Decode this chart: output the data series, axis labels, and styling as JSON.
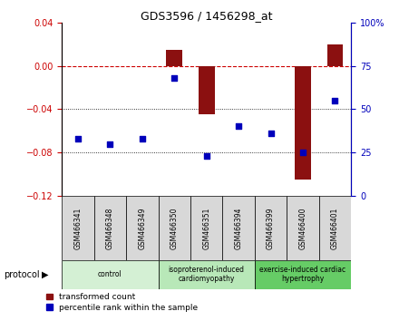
{
  "title": "GDS3596 / 1456298_at",
  "samples": [
    "GSM466341",
    "GSM466348",
    "GSM466349",
    "GSM466350",
    "GSM466351",
    "GSM466394",
    "GSM466399",
    "GSM466400",
    "GSM466401"
  ],
  "transformed_count": [
    0.0,
    0.0,
    0.0,
    0.015,
    -0.045,
    0.0,
    0.0,
    -0.105,
    0.02
  ],
  "percentile_rank": [
    33,
    30,
    33,
    68,
    23,
    40,
    36,
    25,
    55
  ],
  "groups": [
    {
      "label": "control",
      "start": 0,
      "end": 3,
      "color": "#d4f0d4"
    },
    {
      "label": "isoproterenol-induced\ncardiomyopathy",
      "start": 3,
      "end": 6,
      "color": "#b8e8b8"
    },
    {
      "label": "exercise-induced cardiac\nhypertrophy",
      "start": 6,
      "end": 9,
      "color": "#66cc66"
    }
  ],
  "ylim_left": [
    -0.12,
    0.04
  ],
  "ylim_right": [
    0,
    100
  ],
  "yticks_left": [
    0.04,
    0.0,
    -0.04,
    -0.08,
    -0.12
  ],
  "yticks_right": [
    100,
    75,
    50,
    25,
    0
  ],
  "bar_color": "#8B1010",
  "scatter_color": "#0000BB",
  "line_color": "#CC0000",
  "bg_color": "#ffffff",
  "legend_transformed": "transformed count",
  "legend_percentile": "percentile rank within the sample"
}
